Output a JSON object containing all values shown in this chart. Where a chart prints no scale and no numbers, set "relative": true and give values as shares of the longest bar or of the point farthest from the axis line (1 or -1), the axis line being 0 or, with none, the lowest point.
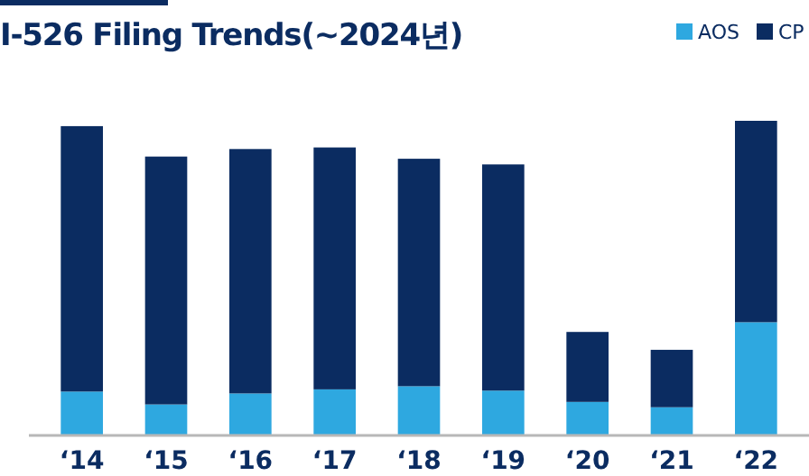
{
  "chart_data": {
    "type": "bar",
    "title": "I-526 Filing Trends(~2024년)",
    "categories": [
      "‘14",
      "‘15",
      "‘16",
      "‘17",
      "‘18",
      "‘19",
      "‘20",
      "‘21",
      "‘22"
    ],
    "stacked": true,
    "relative": true,
    "legend": "top right",
    "series": [
      {
        "name": "AOS",
        "color": "#2ea8e0",
        "values": [
          0.137,
          0.096,
          0.131,
          0.144,
          0.154,
          0.14,
          0.104,
          0.087,
          0.358
        ]
      },
      {
        "name": "CP",
        "color": "#0b2c61",
        "values": [
          0.846,
          0.79,
          0.779,
          0.771,
          0.725,
          0.721,
          0.223,
          0.183,
          0.642
        ]
      }
    ]
  }
}
